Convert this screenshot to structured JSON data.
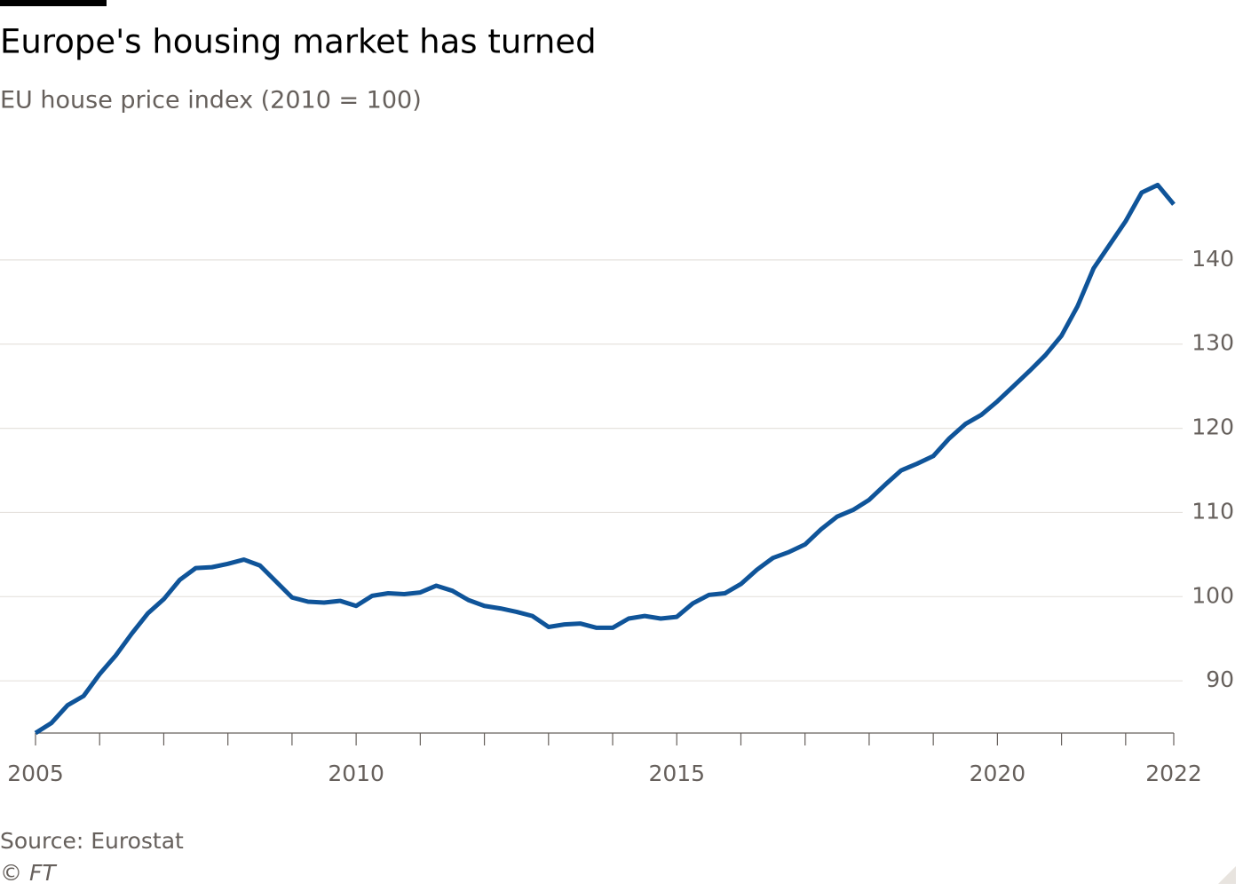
{
  "chart_data": {
    "type": "line",
    "title": "Europe's housing market has turned",
    "subtitle": "EU house price index (2010 = 100)",
    "source": "Source: Eurostat",
    "credit": "© FT",
    "x": [
      2005,
      2005.25,
      2005.5,
      2005.75,
      2006,
      2006.25,
      2006.5,
      2006.75,
      2007,
      2007.25,
      2007.5,
      2007.75,
      2008,
      2008.25,
      2008.5,
      2008.75,
      2009,
      2009.25,
      2009.5,
      2009.75,
      2010,
      2010.25,
      2010.5,
      2010.75,
      2011,
      2011.25,
      2011.5,
      2011.75,
      2012,
      2012.25,
      2012.5,
      2012.75,
      2013,
      2013.25,
      2013.5,
      2013.75,
      2014,
      2014.25,
      2014.5,
      2014.75,
      2015,
      2015.25,
      2015.5,
      2015.75,
      2016,
      2016.25,
      2016.5,
      2016.75,
      2017,
      2017.25,
      2017.5,
      2017.75,
      2018,
      2018.25,
      2018.5,
      2018.75,
      2019,
      2019.25,
      2019.5,
      2019.75,
      2020,
      2020.25,
      2020.5,
      2020.75,
      2021,
      2021.25,
      2021.5,
      2021.75,
      2022,
      2022.25,
      2022.5,
      2022.75
    ],
    "series": [
      {
        "color": "#0f5499",
        "values": [
          83.8,
          85.0,
          87.1,
          88.2,
          90.8,
          93.0,
          95.6,
          98.0,
          99.7,
          102.0,
          103.4,
          103.5,
          103.9,
          104.4,
          103.7,
          101.8,
          99.9,
          99.4,
          99.3,
          99.5,
          98.9,
          100.1,
          100.4,
          100.3,
          100.5,
          101.3,
          100.7,
          99.6,
          98.9,
          98.6,
          98.2,
          97.7,
          96.4,
          96.7,
          96.8,
          96.3,
          96.3,
          97.4,
          97.7,
          97.4,
          97.6,
          99.2,
          100.2,
          100.4,
          101.5,
          103.2,
          104.6,
          105.3,
          106.2,
          108.0,
          109.5,
          110.3,
          111.5,
          113.3,
          115.0,
          115.8,
          116.7,
          118.8,
          120.5,
          121.6,
          123.2,
          125.0,
          126.8,
          128.7,
          131.0,
          134.5,
          139.0,
          141.8,
          144.6,
          148.0,
          148.9,
          146.6
        ]
      }
    ],
    "xlim": [
      2005,
      2022.75
    ],
    "xticks": [
      2005,
      2010,
      2015,
      2020,
      {
        "value": 2022.75,
        "label": "2022"
      }
    ],
    "minor_xticks": [
      2006,
      2007,
      2008,
      2009,
      2011,
      2012,
      2013,
      2014,
      2016,
      2017,
      2018,
      2019,
      2021,
      2022
    ],
    "ylim": [
      83.8,
      150
    ],
    "yticks": [
      90,
      100,
      110,
      120,
      130,
      140
    ],
    "grid": true
  }
}
